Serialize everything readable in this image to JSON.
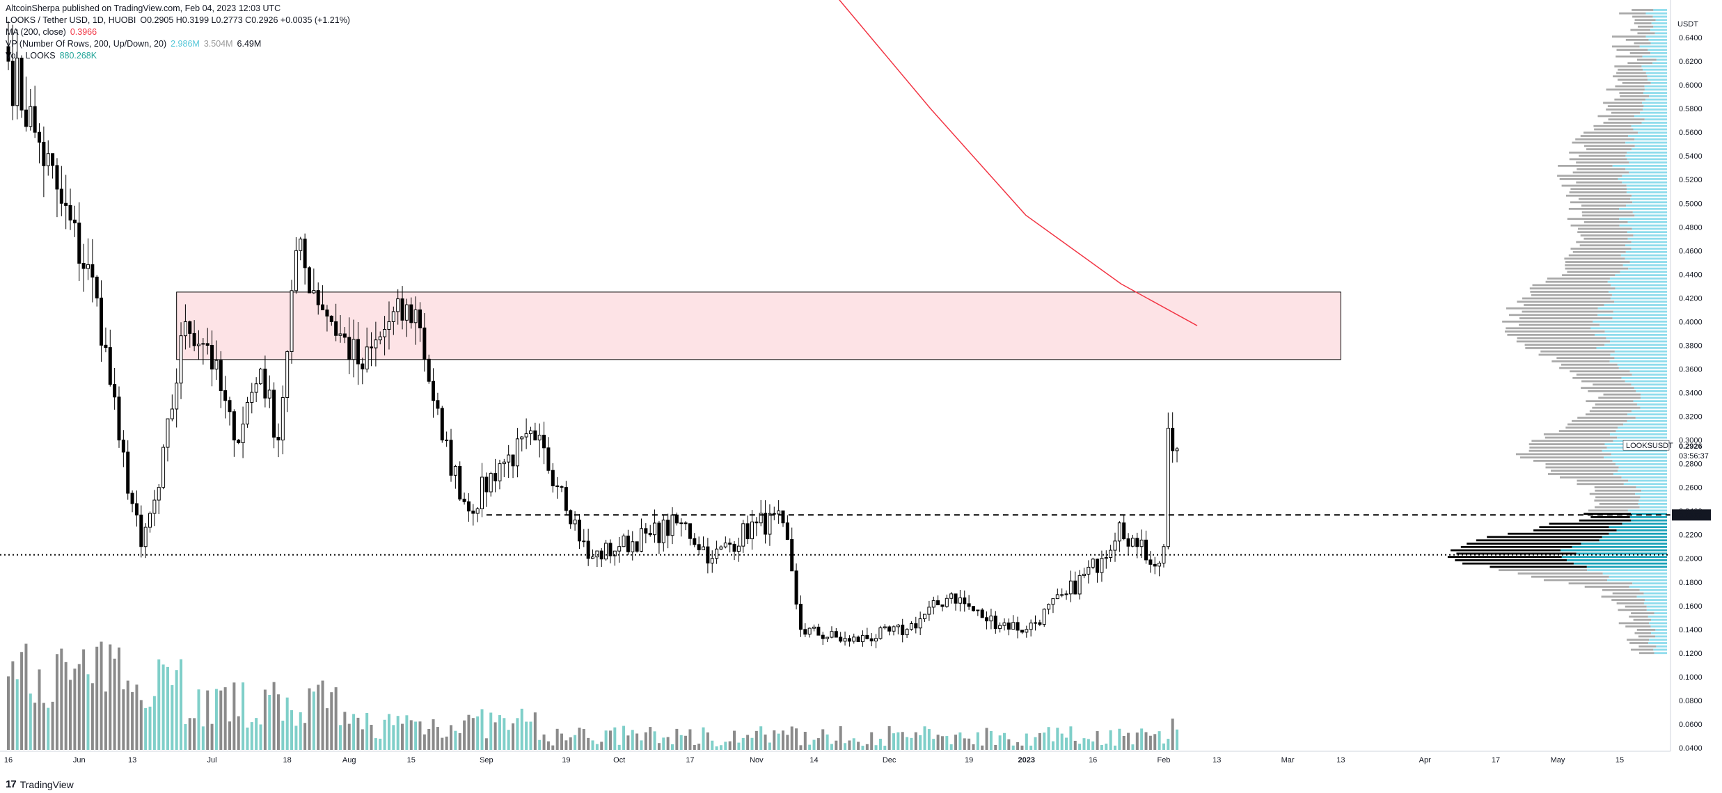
{
  "header": {
    "published": "AltcoinSherpa published on TradingView.com, Feb 04, 2023 12:03 UTC",
    "symbol": "LOOKS / Tether USD, 1D, HUOBI",
    "ohlc": "O0.2905  H0.3199  L0.2773  C0.2926  +0.0035 (+1.21%)",
    "ma_label": "MA (200, close)",
    "ma_value": "0.3966",
    "vp_label": "VP (Number Of Rows, 200, Up/Down, 20)",
    "vp_up": "2.986M",
    "vp_down": "3.504M",
    "vp_total": "6.49M",
    "vol_label": "Vol · LOOKS",
    "vol_value": "880.268K"
  },
  "footer": {
    "logo": "17",
    "brand": "TradingView"
  },
  "colors": {
    "up": "#ffffff",
    "down": "#000000",
    "wick": "#000000",
    "vol_up": "#7fcfc9",
    "vol_down": "#8a8a8a",
    "ma": "#f23645",
    "zone_fill": "#fde3e6",
    "vp_up": "#8fdcec",
    "vp_down": "#a9a9a9",
    "vp_poc_up": "#1ba2b8",
    "vp_poc_down": "#000000"
  },
  "chart_data": {
    "type": "candlestick",
    "symbol": "LOOKSUSDT",
    "ylim": [
      0.04,
      0.66
    ],
    "yticks": [
      "0.6400",
      "0.6200",
      "0.6000",
      "0.5800",
      "0.5600",
      "0.5400",
      "0.5200",
      "0.5000",
      "0.4800",
      "0.4600",
      "0.4400",
      "0.4200",
      "0.4000",
      "0.3800",
      "0.3600",
      "0.3400",
      "0.3200",
      "0.3000",
      "0.2800",
      "0.2600",
      "0.2400",
      "0.2200",
      "0.2000",
      "0.1800",
      "0.1600",
      "0.1400",
      "0.1200",
      "0.1000",
      "0.0800",
      "0.0600",
      "0.0400"
    ],
    "y_unit": "USDT",
    "xticks": [
      "16",
      "Jun",
      "13",
      "Jul",
      "18",
      "Aug",
      "15",
      "Sep",
      "19",
      "Oct",
      "17",
      "Nov",
      "14",
      "Dec",
      "19",
      "2023",
      "16",
      "Feb",
      "13",
      "Mar",
      "13",
      "Apr",
      "17",
      "May",
      "15"
    ],
    "last_price": "0.2926",
    "last_label": "LOOKSUSDT",
    "countdown": "03:56:37",
    "level_label": "0.2367",
    "levels": {
      "dashed": 0.2367,
      "dotted": 0.203
    },
    "zone": {
      "top": 0.425,
      "bottom": 0.368,
      "start": "Jun 23, 2022",
      "end": "Mar 13, 2023"
    },
    "ma200": [
      [
        20,
        0.676
      ],
      [
        30,
        0.58
      ],
      [
        40,
        0.49
      ],
      [
        50,
        0.432
      ],
      [
        58,
        0.3966
      ]
    ],
    "anchors": [
      [
        "2022-05-16",
        0.62
      ],
      [
        "2022-05-22",
        0.56
      ],
      [
        "2022-05-28",
        0.5
      ],
      [
        "2022-06-05",
        0.42
      ],
      [
        "2022-06-10",
        0.3
      ],
      [
        "2022-06-15",
        0.21
      ],
      [
        "2022-06-19",
        0.26
      ],
      [
        "2022-06-25",
        0.4
      ],
      [
        "2022-06-30",
        0.38
      ],
      [
        "2022-07-06",
        0.3
      ],
      [
        "2022-07-12",
        0.36
      ],
      [
        "2022-07-16",
        0.3
      ],
      [
        "2022-07-20",
        0.46
      ],
      [
        "2022-07-28",
        0.4
      ],
      [
        "2022-08-04",
        0.36
      ],
      [
        "2022-08-10",
        0.4
      ],
      [
        "2022-08-16",
        0.41
      ],
      [
        "2022-08-22",
        0.3
      ],
      [
        "2022-08-28",
        0.24
      ],
      [
        "2022-09-04",
        0.28
      ],
      [
        "2022-09-12",
        0.3
      ],
      [
        "2022-09-18",
        0.26
      ],
      [
        "2022-09-24",
        0.2
      ],
      [
        "2022-10-01",
        0.21
      ],
      [
        "2022-10-08",
        0.22
      ],
      [
        "2022-10-15",
        0.23
      ],
      [
        "2022-10-22",
        0.2
      ],
      [
        "2022-11-01",
        0.23
      ],
      [
        "2022-11-07",
        0.23
      ],
      [
        "2022-11-11",
        0.14
      ],
      [
        "2022-11-22",
        0.13
      ],
      [
        "2022-12-05",
        0.14
      ],
      [
        "2022-12-15",
        0.17
      ],
      [
        "2022-12-22",
        0.15
      ],
      [
        "2023-01-01",
        0.14
      ],
      [
        "2023-01-10",
        0.17
      ],
      [
        "2023-01-18",
        0.2
      ],
      [
        "2023-01-22",
        0.23
      ],
      [
        "2023-01-26",
        0.21
      ],
      [
        "2023-01-31",
        0.196
      ],
      [
        "2023-02-01",
        0.21
      ],
      [
        "2023-02-02",
        0.31
      ],
      [
        "2023-02-03",
        0.291
      ],
      [
        "2023-02-04",
        0.2926
      ]
    ],
    "volume_profile": "up/down rows from 0.12 to 0.66, POC near 0.20"
  }
}
